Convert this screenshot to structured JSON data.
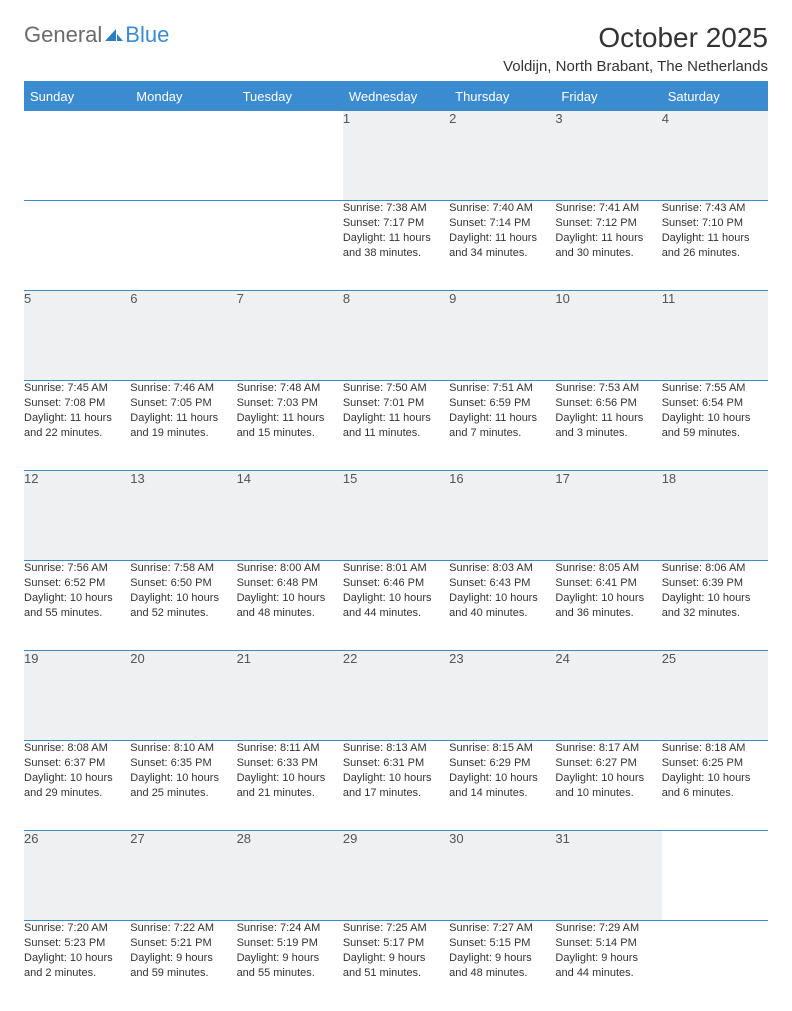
{
  "logo": {
    "text1": "General",
    "text2": "Blue"
  },
  "title": "October 2025",
  "location": "Voldijn, North Brabant, The Netherlands",
  "colors": {
    "header_background": "#3a8bd0",
    "header_text": "#ffffff",
    "daynum_background": "#eef0f2",
    "row_border": "#3a8bd0",
    "body_text": "#333333",
    "logo_gray": "#6b6b6b",
    "logo_blue": "#3a8bd0",
    "page_background": "#ffffff"
  },
  "typography": {
    "month_title_fontsize": 28,
    "location_fontsize": 15,
    "weekday_fontsize": 13,
    "daynum_fontsize": 13,
    "cell_fontsize": 11
  },
  "weekdays": [
    "Sunday",
    "Monday",
    "Tuesday",
    "Wednesday",
    "Thursday",
    "Friday",
    "Saturday"
  ],
  "weeks": [
    [
      null,
      null,
      null,
      {
        "n": "1",
        "sunrise": "7:38 AM",
        "sunset": "7:17 PM",
        "d1": "Daylight: 11 hours",
        "d2": "and 38 minutes."
      },
      {
        "n": "2",
        "sunrise": "7:40 AM",
        "sunset": "7:14 PM",
        "d1": "Daylight: 11 hours",
        "d2": "and 34 minutes."
      },
      {
        "n": "3",
        "sunrise": "7:41 AM",
        "sunset": "7:12 PM",
        "d1": "Daylight: 11 hours",
        "d2": "and 30 minutes."
      },
      {
        "n": "4",
        "sunrise": "7:43 AM",
        "sunset": "7:10 PM",
        "d1": "Daylight: 11 hours",
        "d2": "and 26 minutes."
      }
    ],
    [
      {
        "n": "5",
        "sunrise": "7:45 AM",
        "sunset": "7:08 PM",
        "d1": "Daylight: 11 hours",
        "d2": "and 22 minutes."
      },
      {
        "n": "6",
        "sunrise": "7:46 AM",
        "sunset": "7:05 PM",
        "d1": "Daylight: 11 hours",
        "d2": "and 19 minutes."
      },
      {
        "n": "7",
        "sunrise": "7:48 AM",
        "sunset": "7:03 PM",
        "d1": "Daylight: 11 hours",
        "d2": "and 15 minutes."
      },
      {
        "n": "8",
        "sunrise": "7:50 AM",
        "sunset": "7:01 PM",
        "d1": "Daylight: 11 hours",
        "d2": "and 11 minutes."
      },
      {
        "n": "9",
        "sunrise": "7:51 AM",
        "sunset": "6:59 PM",
        "d1": "Daylight: 11 hours",
        "d2": "and 7 minutes."
      },
      {
        "n": "10",
        "sunrise": "7:53 AM",
        "sunset": "6:56 PM",
        "d1": "Daylight: 11 hours",
        "d2": "and 3 minutes."
      },
      {
        "n": "11",
        "sunrise": "7:55 AM",
        "sunset": "6:54 PM",
        "d1": "Daylight: 10 hours",
        "d2": "and 59 minutes."
      }
    ],
    [
      {
        "n": "12",
        "sunrise": "7:56 AM",
        "sunset": "6:52 PM",
        "d1": "Daylight: 10 hours",
        "d2": "and 55 minutes."
      },
      {
        "n": "13",
        "sunrise": "7:58 AM",
        "sunset": "6:50 PM",
        "d1": "Daylight: 10 hours",
        "d2": "and 52 minutes."
      },
      {
        "n": "14",
        "sunrise": "8:00 AM",
        "sunset": "6:48 PM",
        "d1": "Daylight: 10 hours",
        "d2": "and 48 minutes."
      },
      {
        "n": "15",
        "sunrise": "8:01 AM",
        "sunset": "6:46 PM",
        "d1": "Daylight: 10 hours",
        "d2": "and 44 minutes."
      },
      {
        "n": "16",
        "sunrise": "8:03 AM",
        "sunset": "6:43 PM",
        "d1": "Daylight: 10 hours",
        "d2": "and 40 minutes."
      },
      {
        "n": "17",
        "sunrise": "8:05 AM",
        "sunset": "6:41 PM",
        "d1": "Daylight: 10 hours",
        "d2": "and 36 minutes."
      },
      {
        "n": "18",
        "sunrise": "8:06 AM",
        "sunset": "6:39 PM",
        "d1": "Daylight: 10 hours",
        "d2": "and 32 minutes."
      }
    ],
    [
      {
        "n": "19",
        "sunrise": "8:08 AM",
        "sunset": "6:37 PM",
        "d1": "Daylight: 10 hours",
        "d2": "and 29 minutes."
      },
      {
        "n": "20",
        "sunrise": "8:10 AM",
        "sunset": "6:35 PM",
        "d1": "Daylight: 10 hours",
        "d2": "and 25 minutes."
      },
      {
        "n": "21",
        "sunrise": "8:11 AM",
        "sunset": "6:33 PM",
        "d1": "Daylight: 10 hours",
        "d2": "and 21 minutes."
      },
      {
        "n": "22",
        "sunrise": "8:13 AM",
        "sunset": "6:31 PM",
        "d1": "Daylight: 10 hours",
        "d2": "and 17 minutes."
      },
      {
        "n": "23",
        "sunrise": "8:15 AM",
        "sunset": "6:29 PM",
        "d1": "Daylight: 10 hours",
        "d2": "and 14 minutes."
      },
      {
        "n": "24",
        "sunrise": "8:17 AM",
        "sunset": "6:27 PM",
        "d1": "Daylight: 10 hours",
        "d2": "and 10 minutes."
      },
      {
        "n": "25",
        "sunrise": "8:18 AM",
        "sunset": "6:25 PM",
        "d1": "Daylight: 10 hours",
        "d2": "and 6 minutes."
      }
    ],
    [
      {
        "n": "26",
        "sunrise": "7:20 AM",
        "sunset": "5:23 PM",
        "d1": "Daylight: 10 hours",
        "d2": "and 2 minutes."
      },
      {
        "n": "27",
        "sunrise": "7:22 AM",
        "sunset": "5:21 PM",
        "d1": "Daylight: 9 hours",
        "d2": "and 59 minutes."
      },
      {
        "n": "28",
        "sunrise": "7:24 AM",
        "sunset": "5:19 PM",
        "d1": "Daylight: 9 hours",
        "d2": "and 55 minutes."
      },
      {
        "n": "29",
        "sunrise": "7:25 AM",
        "sunset": "5:17 PM",
        "d1": "Daylight: 9 hours",
        "d2": "and 51 minutes."
      },
      {
        "n": "30",
        "sunrise": "7:27 AM",
        "sunset": "5:15 PM",
        "d1": "Daylight: 9 hours",
        "d2": "and 48 minutes."
      },
      {
        "n": "31",
        "sunrise": "7:29 AM",
        "sunset": "5:14 PM",
        "d1": "Daylight: 9 hours",
        "d2": "and 44 minutes."
      },
      null
    ]
  ]
}
